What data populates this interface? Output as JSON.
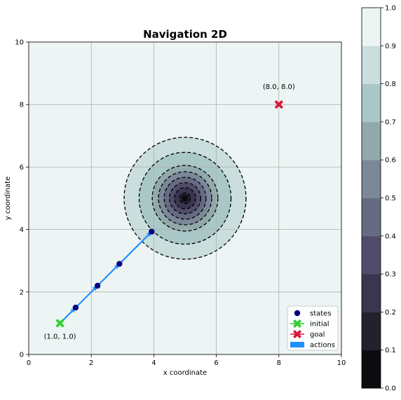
{
  "chart_data": {
    "type": "contour",
    "title": "Navigation 2D",
    "xlabel": "x coordinate",
    "ylabel": "y coordinate",
    "xlim": [
      0,
      10
    ],
    "ylim": [
      0,
      10
    ],
    "xticks": [
      "0",
      "2",
      "4",
      "6",
      "8",
      "10"
    ],
    "yticks": [
      "0",
      "2",
      "4",
      "6",
      "8",
      "10"
    ],
    "grid": true,
    "legend_position": "lower-right",
    "legend": [
      {
        "label": "states",
        "marker": "circle",
        "color": "#000080"
      },
      {
        "label": "initial",
        "marker": "x-cross",
        "color": "#32cd32"
      },
      {
        "label": "goal",
        "marker": "x-cross",
        "color": "#dc143c"
      },
      {
        "label": "actions",
        "marker": "patch",
        "color": "#1e90ff"
      }
    ],
    "initial": {
      "x": 1.0,
      "y": 1.0,
      "label": "(1.0, 1.0)",
      "color": "#32cd32"
    },
    "goal": {
      "x": 8.0,
      "y": 8.0,
      "label": "(8.0, 8.0)",
      "color": "#dc143c"
    },
    "states": [
      {
        "x": 1.5,
        "y": 1.5
      },
      {
        "x": 2.2,
        "y": 2.2
      },
      {
        "x": 2.9,
        "y": 2.9
      },
      {
        "x": 3.93,
        "y": 3.93
      }
    ],
    "actions": [
      {
        "from": [
          1.0,
          1.0
        ],
        "to": [
          1.5,
          1.5
        ]
      },
      {
        "from": [
          1.5,
          1.5
        ],
        "to": [
          2.2,
          2.2
        ]
      },
      {
        "from": [
          2.2,
          2.2
        ],
        "to": [
          2.9,
          2.9
        ]
      },
      {
        "from": [
          2.9,
          2.9
        ],
        "to": [
          3.93,
          3.93
        ]
      }
    ],
    "contour": {
      "center": [
        5.0,
        5.0
      ],
      "line_radii": [
        1.95,
        1.47,
        1.05,
        0.85,
        0.67,
        0.5,
        0.34,
        0.17
      ],
      "bands": [
        {
          "level": [
            0.8,
            0.9
          ],
          "color": "#c9dedd"
        },
        {
          "level": [
            0.7,
            0.8
          ],
          "color": "#a9c7c7"
        },
        {
          "level": [
            0.6,
            0.7
          ],
          "color": "#92a9ac"
        },
        {
          "level": [
            0.5,
            0.6
          ],
          "color": "#7a8898"
        },
        {
          "level": [
            0.4,
            0.5
          ],
          "color": "#666b83"
        },
        {
          "level": [
            0.3,
            0.4
          ],
          "color": "#4f4d69"
        },
        {
          "level": [
            0.2,
            0.3
          ],
          "color": "#393650"
        },
        {
          "level": [
            0.1,
            0.2
          ],
          "color": "#22212c"
        },
        {
          "level": [
            0.0,
            0.1
          ],
          "color": "#0b0b10"
        }
      ],
      "background_color": "#edf4f4"
    },
    "colorbar": {
      "min": 0.0,
      "max": 1.0,
      "ticks": [
        "0.0",
        "0.1",
        "0.2",
        "0.3",
        "0.4",
        "0.5",
        "0.6",
        "0.7",
        "0.8",
        "0.9",
        "1.0"
      ],
      "colors": [
        "#0b0b10",
        "#22212c",
        "#393650",
        "#4f4d69",
        "#666b83",
        "#7a8898",
        "#92a9ac",
        "#a9c7c7",
        "#c9dedd",
        "#edf4f4"
      ]
    }
  }
}
